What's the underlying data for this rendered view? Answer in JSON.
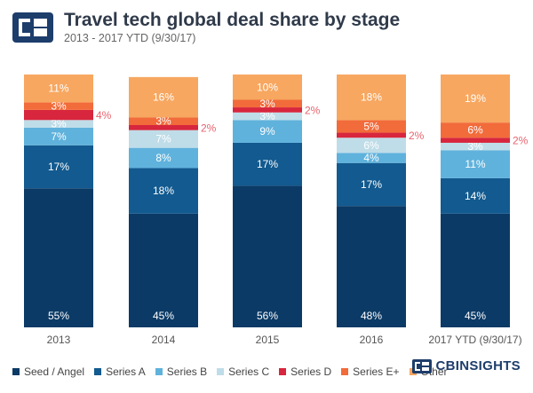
{
  "header": {
    "title": "Travel tech global deal share by stage",
    "subtitle": "2013 - 2017 YTD (9/30/17)"
  },
  "brand": {
    "logo_text_a": "CB",
    "logo_text_b": "INSIGHTS"
  },
  "colors": {
    "seed": "#0b3a66",
    "seriesA": "#125a8f",
    "seriesB": "#5fb2dc",
    "seriesC": "#bfdde8",
    "seriesD": "#d7263d",
    "seriesEplus": "#f26b3a",
    "other": "#f7a760",
    "callout": "#e8646e",
    "logo_blue": "#1d3d6b"
  },
  "chart_data": {
    "type": "bar",
    "stacked": true,
    "normalized": true,
    "categories": [
      "2013",
      "2014",
      "2015",
      "2016",
      "2017 YTD (9/30/17)"
    ],
    "ylim": [
      0,
      100
    ],
    "series": [
      {
        "name": "Seed / Angel",
        "color_key": "seed",
        "values": [
          55,
          45,
          56,
          48,
          45
        ],
        "labels": [
          "55%",
          "45%",
          "56%",
          "48%",
          "45%"
        ]
      },
      {
        "name": "Series A",
        "color_key": "seriesA",
        "values": [
          17,
          18,
          17,
          17,
          14
        ],
        "labels": [
          "17%",
          "18%",
          "17%",
          "17%",
          "14%"
        ]
      },
      {
        "name": "Series B",
        "color_key": "seriesB",
        "values": [
          7,
          8,
          9,
          4,
          11
        ],
        "labels": [
          "7%",
          "8%",
          "9%",
          "4%",
          "11%"
        ]
      },
      {
        "name": "Series C",
        "color_key": "seriesC",
        "values": [
          3,
          7,
          3,
          6,
          3
        ],
        "labels": [
          "3%",
          "7%",
          "3%",
          "6%",
          "3%"
        ]
      },
      {
        "name": "Series D",
        "color_key": "seriesD",
        "values": [
          4,
          2,
          2,
          2,
          2
        ],
        "labels": [
          "4%",
          "2%",
          "2%",
          "2%",
          "2%"
        ]
      },
      {
        "name": "Series E+",
        "color_key": "seriesEplus",
        "values": [
          3,
          3,
          3,
          5,
          6
        ],
        "labels": [
          "3%",
          "3%",
          "3%",
          "5%",
          "6%"
        ]
      },
      {
        "name": "Other",
        "color_key": "other",
        "values": [
          11,
          16,
          10,
          18,
          19
        ],
        "labels": [
          "11%",
          "16%",
          "10%",
          "18%",
          "19%"
        ]
      }
    ],
    "callout_series": "Series D",
    "legend_position": "bottom",
    "grid": false
  }
}
